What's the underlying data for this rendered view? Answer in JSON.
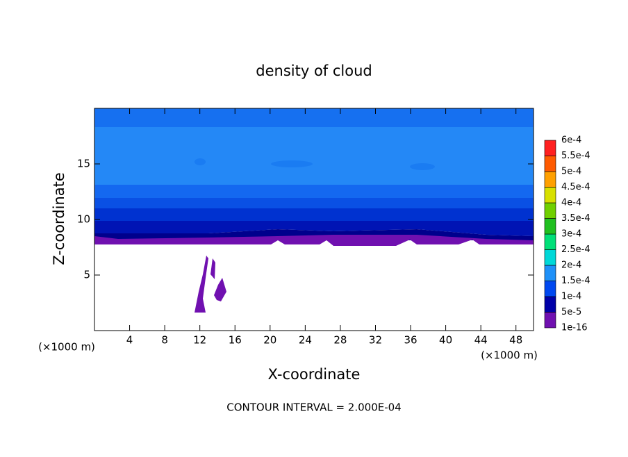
{
  "chart_data": {
    "type": "contour",
    "title": "density of cloud",
    "x_label": "X-coordinate",
    "y_label": "Z-coordinate",
    "x_unit_left": "(×1000 m)",
    "x_unit_right": "(×1000 m)",
    "footnote": "CONTOUR INTERVAL = 2.000E-04",
    "xlim": [
      0,
      50
    ],
    "xticks": [
      4,
      8,
      12,
      16,
      20,
      24,
      28,
      32,
      36,
      40,
      44,
      48
    ],
    "ylim": [
      0,
      20
    ],
    "yticks": [
      5,
      10,
      15
    ],
    "colorbar": {
      "levels": [
        {
          "value": 1e-16,
          "label": "1e-16"
        },
        {
          "value": 5e-05,
          "label": "5e-5"
        },
        {
          "value": 0.0001,
          "label": "1e-4"
        },
        {
          "value": 0.00015,
          "label": "1.5e-4"
        },
        {
          "value": 0.0002,
          "label": "2e-4"
        },
        {
          "value": 0.00025,
          "label": "2.5e-4"
        },
        {
          "value": 0.0003,
          "label": "3e-4"
        },
        {
          "value": 0.00035,
          "label": "3.5e-4"
        },
        {
          "value": 0.0004,
          "label": "4e-4"
        },
        {
          "value": 0.00045,
          "label": "4.5e-4"
        },
        {
          "value": 0.0005,
          "label": "5e-4"
        },
        {
          "value": 0.00055,
          "label": "5.5e-4"
        },
        {
          "value": 0.0006,
          "label": "6e-4"
        }
      ],
      "colors": [
        "#7010b0",
        "#0000a8",
        "#0048f0",
        "#1e90f8",
        "#00d8d8",
        "#00e078",
        "#20c020",
        "#70d000",
        "#d8e000",
        "#ffa000",
        "#ff5a00",
        "#ff2020",
        "#f08888"
      ]
    }
  }
}
